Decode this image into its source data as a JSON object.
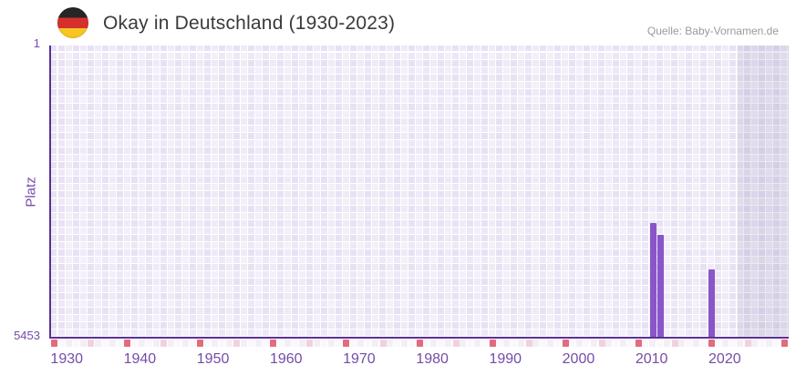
{
  "header": {
    "flag": "german-flag",
    "title": "Okay in Deutschland (1930-2023)",
    "source": "Quelle: Baby-Vornamen.de"
  },
  "chart_data": {
    "type": "bar",
    "title": "Okay in Deutschland (1930-2023)",
    "xlabel": "",
    "ylabel": "Platz",
    "y_axis": {
      "domain": [
        1,
        5453
      ],
      "inverted": true,
      "tick_labels": [
        "1",
        "5453"
      ]
    },
    "x_axis": {
      "domain": [
        1929.6,
        2030.5
      ],
      "labeled_ticks": [
        1930,
        1940,
        1950,
        1960,
        1970,
        1980,
        1990,
        2000,
        2010,
        2020
      ],
      "major_tick_years": [
        1930,
        1940,
        1950,
        1960,
        1970,
        1980,
        1990,
        2000,
        2010,
        2020,
        2030
      ],
      "minor_tick_years": [
        1935,
        1945,
        1955,
        1965,
        1975,
        1985,
        1995,
        2005,
        2015,
        2025
      ]
    },
    "series": [
      {
        "name": "Platz",
        "points": [
          {
            "year": 2012,
            "rank": 3330
          },
          {
            "year": 2013,
            "rank": 3545
          },
          {
            "year": 2020,
            "rank": 4200
          }
        ]
      }
    ],
    "no_data_region": {
      "from_year": 2023.5,
      "to_year": 2030.5
    },
    "grid": "checkered-lavender",
    "legend": "none",
    "colors": {
      "bar": "#8a55c8",
      "axis-line": "#5a3195",
      "axis-text": "#744ca8",
      "tick-major": "#e26b7e",
      "tick-minor": "#efd2dd",
      "title-text": "#3a3a3a",
      "source-text": "#9a9a9a",
      "plot-bg-dark-cell": "#e7e2f4",
      "plot-bg-light-cell": "#f3f0fa",
      "no-data-overlay": "rgba(104,84,150,0.13)"
    }
  }
}
